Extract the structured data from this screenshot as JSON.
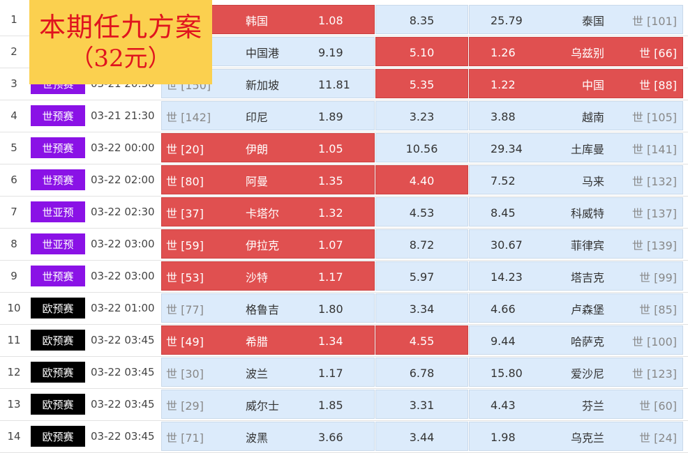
{
  "banner": {
    "line1": "本期任九方案",
    "line2": "（32元）"
  },
  "colors": {
    "purple_badge": "#8a12e6",
    "black_badge": "#000000",
    "highlight": "#e05050",
    "cell_bg": "#dcebfb"
  },
  "rows": [
    {
      "idx": "1",
      "league": "",
      "time": "",
      "rank1": "",
      "team1": "韩国",
      "odd1": "1.08",
      "oddd": "8.35",
      "odd2": "25.79",
      "team2": "泰国",
      "rank2": "世 [101]",
      "badge": "purple",
      "hl": [
        true,
        false,
        false
      ]
    },
    {
      "idx": "2",
      "league": "",
      "time": "",
      "rank1": "",
      "team1": "中国港",
      "odd1": "9.19",
      "oddd": "5.10",
      "odd2": "1.26",
      "team2": "乌兹别",
      "rank2": "世 [66]",
      "badge": "purple",
      "hl": [
        false,
        true,
        true
      ]
    },
    {
      "idx": "3",
      "league": "世预赛",
      "time": "03-21 20:30",
      "rank1": "世 [150]",
      "team1": "新加坡",
      "odd1": "11.81",
      "oddd": "5.35",
      "odd2": "1.22",
      "team2": "中国",
      "rank2": "世 [88]",
      "badge": "purple",
      "hl": [
        false,
        true,
        true
      ]
    },
    {
      "idx": "4",
      "league": "世预赛",
      "time": "03-21 21:30",
      "rank1": "世 [142]",
      "team1": "印尼",
      "odd1": "1.89",
      "oddd": "3.23",
      "odd2": "3.88",
      "team2": "越南",
      "rank2": "世 [105]",
      "badge": "purple",
      "hl": [
        false,
        false,
        false
      ]
    },
    {
      "idx": "5",
      "league": "世预赛",
      "time": "03-22 00:00",
      "rank1": "世 [20]",
      "team1": "伊朗",
      "odd1": "1.05",
      "oddd": "10.56",
      "odd2": "29.34",
      "team2": "土库曼",
      "rank2": "世 [141]",
      "badge": "purple",
      "hl": [
        true,
        false,
        false
      ]
    },
    {
      "idx": "6",
      "league": "世预赛",
      "time": "03-22 02:00",
      "rank1": "世 [80]",
      "team1": "阿曼",
      "odd1": "1.35",
      "oddd": "4.40",
      "odd2": "7.52",
      "team2": "马来",
      "rank2": "世 [132]",
      "badge": "purple",
      "hl": [
        true,
        true,
        false
      ]
    },
    {
      "idx": "7",
      "league": "世亚预",
      "time": "03-22 02:30",
      "rank1": "世 [37]",
      "team1": "卡塔尔",
      "odd1": "1.32",
      "oddd": "4.53",
      "odd2": "8.45",
      "team2": "科威特",
      "rank2": "世 [137]",
      "badge": "purple",
      "hl": [
        true,
        false,
        false
      ]
    },
    {
      "idx": "8",
      "league": "世亚预",
      "time": "03-22 03:00",
      "rank1": "世 [59]",
      "team1": "伊拉克",
      "odd1": "1.07",
      "oddd": "8.72",
      "odd2": "30.67",
      "team2": "菲律宾",
      "rank2": "世 [139]",
      "badge": "purple",
      "hl": [
        true,
        false,
        false
      ]
    },
    {
      "idx": "9",
      "league": "世预赛",
      "time": "03-22 03:00",
      "rank1": "世 [53]",
      "team1": "沙特",
      "odd1": "1.17",
      "oddd": "5.97",
      "odd2": "14.23",
      "team2": "塔吉克",
      "rank2": "世 [99]",
      "badge": "purple",
      "hl": [
        true,
        false,
        false
      ]
    },
    {
      "idx": "10",
      "league": "欧预赛",
      "time": "03-22 01:00",
      "rank1": "世 [77]",
      "team1": "格鲁吉",
      "odd1": "1.80",
      "oddd": "3.34",
      "odd2": "4.66",
      "team2": "卢森堡",
      "rank2": "世 [85]",
      "badge": "black",
      "hl": [
        false,
        false,
        false
      ]
    },
    {
      "idx": "11",
      "league": "欧预赛",
      "time": "03-22 03:45",
      "rank1": "世 [49]",
      "team1": "希腊",
      "odd1": "1.34",
      "oddd": "4.55",
      "odd2": "9.44",
      "team2": "哈萨克",
      "rank2": "世 [100]",
      "badge": "black",
      "hl": [
        true,
        true,
        false
      ]
    },
    {
      "idx": "12",
      "league": "欧预赛",
      "time": "03-22 03:45",
      "rank1": "世 [30]",
      "team1": "波兰",
      "odd1": "1.17",
      "oddd": "6.78",
      "odd2": "15.80",
      "team2": "爱沙尼",
      "rank2": "世 [123]",
      "badge": "black",
      "hl": [
        false,
        false,
        false
      ]
    },
    {
      "idx": "13",
      "league": "欧预赛",
      "time": "03-22 03:45",
      "rank1": "世 [29]",
      "team1": "威尔士",
      "odd1": "1.85",
      "oddd": "3.31",
      "odd2": "4.43",
      "team2": "芬兰",
      "rank2": "世 [60]",
      "badge": "black",
      "hl": [
        false,
        false,
        false
      ]
    },
    {
      "idx": "14",
      "league": "欧预赛",
      "time": "03-22 03:45",
      "rank1": "世 [71]",
      "team1": "波黑",
      "odd1": "3.66",
      "oddd": "3.44",
      "odd2": "1.98",
      "team2": "乌克兰",
      "rank2": "世 [24]",
      "badge": "black",
      "hl": [
        false,
        false,
        false
      ]
    }
  ]
}
